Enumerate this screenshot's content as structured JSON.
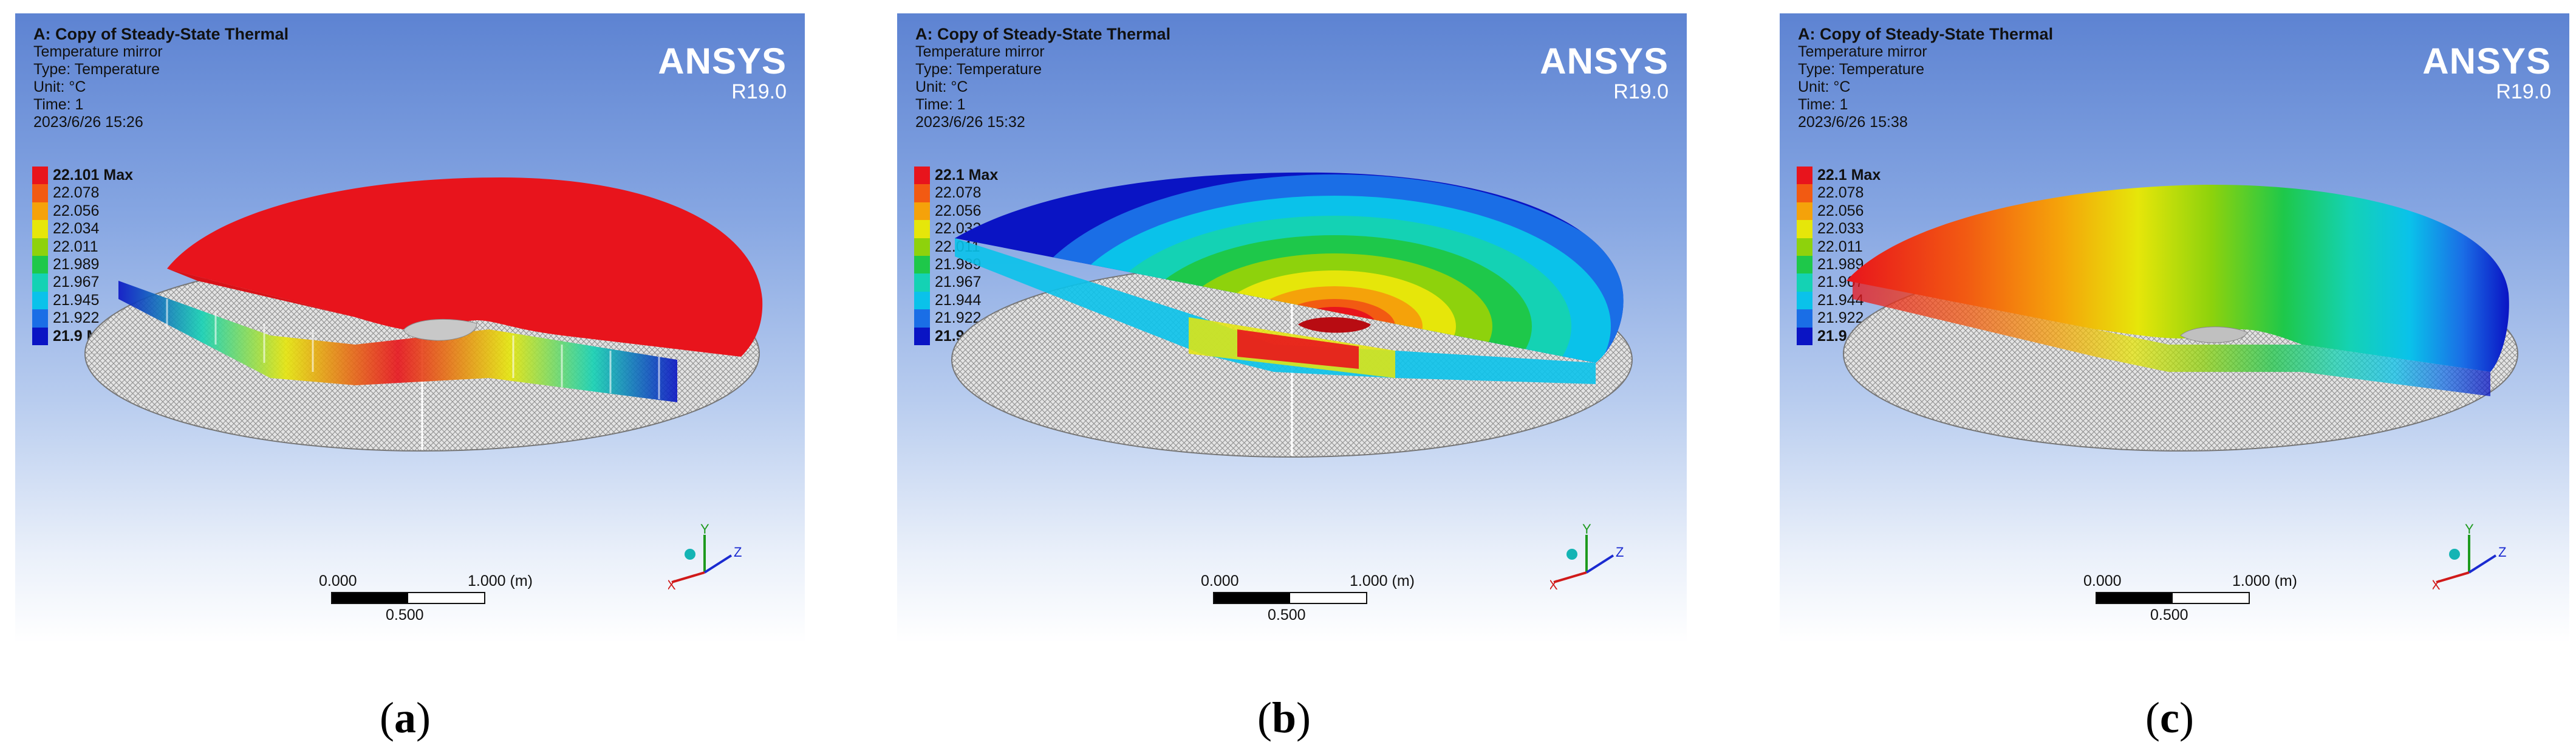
{
  "panels": [
    {
      "id": "a",
      "header": {
        "title": "A: Copy of Steady-State Thermal",
        "object": "Temperature mirror",
        "type": "Type: Temperature",
        "unit": "Unit: °C",
        "time": "Time: 1",
        "timestamp": "2023/6/26 15:26"
      },
      "brand": {
        "name": "ANSYS",
        "version": "R19.0"
      },
      "legend": [
        {
          "label": "22.101 Max",
          "color": "#e8141c",
          "bold": true
        },
        {
          "label": "22.078",
          "color": "#f25a12",
          "bold": false
        },
        {
          "label": "22.056",
          "color": "#f5a20a",
          "bold": false
        },
        {
          "label": "22.034",
          "color": "#e6e60a",
          "bold": false
        },
        {
          "label": "22.011",
          "color": "#8ed20c",
          "bold": false
        },
        {
          "label": "21.989",
          "color": "#1ec84a",
          "bold": false
        },
        {
          "label": "21.967",
          "color": "#14d2b4",
          "bold": false
        },
        {
          "label": "21.945",
          "color": "#0ac2ea",
          "bold": false
        },
        {
          "label": "21.922",
          "color": "#1a6ee6",
          "bold": false
        },
        {
          "label": "21.9 Min",
          "color": "#0a14c4",
          "bold": true
        }
      ],
      "scale": {
        "zero": "0.000",
        "max": "1.000 (m)",
        "mid": "0.500"
      },
      "triad": {
        "x": "X",
        "y": "Y",
        "z": "Z"
      },
      "caption": {
        "open": "(",
        "letter": "a",
        "close": ")"
      }
    },
    {
      "id": "b",
      "header": {
        "title": "A: Copy of Steady-State Thermal",
        "object": "Temperature mirror",
        "type": "Type: Temperature",
        "unit": "Unit: °C",
        "time": "Time: 1",
        "timestamp": "2023/6/26 15:32"
      },
      "brand": {
        "name": "ANSYS",
        "version": "R19.0"
      },
      "legend": [
        {
          "label": "22.1 Max",
          "color": "#e8141c",
          "bold": true
        },
        {
          "label": "22.078",
          "color": "#f25a12",
          "bold": false
        },
        {
          "label": "22.056",
          "color": "#f5a20a",
          "bold": false
        },
        {
          "label": "22.033",
          "color": "#e6e60a",
          "bold": false
        },
        {
          "label": "22.011",
          "color": "#8ed20c",
          "bold": false
        },
        {
          "label": "21.989",
          "color": "#1ec84a",
          "bold": false
        },
        {
          "label": "21.967",
          "color": "#14d2b4",
          "bold": false
        },
        {
          "label": "21.944",
          "color": "#0ac2ea",
          "bold": false
        },
        {
          "label": "21.922",
          "color": "#1a6ee6",
          "bold": false
        },
        {
          "label": "21.9 Min",
          "color": "#0a14c4",
          "bold": true
        }
      ],
      "scale": {
        "zero": "0.000",
        "max": "1.000 (m)",
        "mid": "0.500"
      },
      "triad": {
        "x": "X",
        "y": "Y",
        "z": "Z"
      },
      "caption": {
        "open": "(",
        "letter": "b",
        "close": ")"
      }
    },
    {
      "id": "c",
      "header": {
        "title": "A: Copy of Steady-State Thermal",
        "object": "Temperature mirror",
        "type": "Type: Temperature",
        "unit": "Unit: °C",
        "time": "Time: 1",
        "timestamp": "2023/6/26 15:38"
      },
      "brand": {
        "name": "ANSYS",
        "version": "R19.0"
      },
      "legend": [
        {
          "label": "22.1 Max",
          "color": "#e8141c",
          "bold": true
        },
        {
          "label": "22.078",
          "color": "#f25a12",
          "bold": false
        },
        {
          "label": "22.056",
          "color": "#f5a20a",
          "bold": false
        },
        {
          "label": "22.033",
          "color": "#e6e60a",
          "bold": false
        },
        {
          "label": "22.011",
          "color": "#8ed20c",
          "bold": false
        },
        {
          "label": "21.989",
          "color": "#1ec84a",
          "bold": false
        },
        {
          "label": "21.967",
          "color": "#14d2b4",
          "bold": false
        },
        {
          "label": "21.944",
          "color": "#0ac2ea",
          "bold": false
        },
        {
          "label": "21.922",
          "color": "#1a6ee6",
          "bold": false
        },
        {
          "label": "21.9 Min",
          "color": "#0a14c4",
          "bold": true
        }
      ],
      "scale": {
        "zero": "0.000",
        "max": "1.000 (m)",
        "mid": "0.500"
      },
      "triad": {
        "x": "X",
        "y": "Y",
        "z": "Z"
      },
      "caption": {
        "open": "(",
        "letter": "c",
        "close": ")"
      }
    }
  ]
}
